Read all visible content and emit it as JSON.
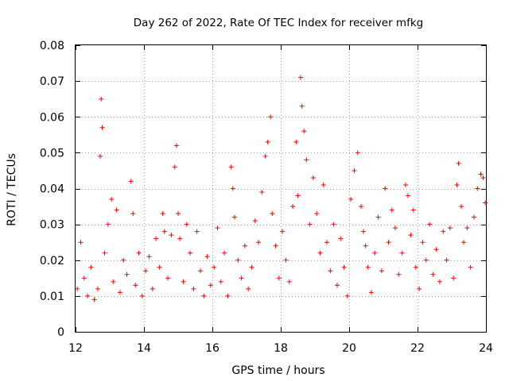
{
  "chart_data": {
    "type": "scatter",
    "title": "Day 262 of 2022, Rate Of TEC Index for receiver mfkg",
    "xlabel": "GPS time / hours",
    "ylabel": "ROTI / TECUs",
    "xlim": [
      12,
      24
    ],
    "ylim": [
      0,
      0.08
    ],
    "xticks": [
      12,
      14,
      16,
      18,
      20,
      22,
      24
    ],
    "xtick_labels": [
      "12",
      "14",
      "16",
      "18",
      "20",
      "22",
      "24"
    ],
    "yticks": [
      0,
      0.01,
      0.02,
      0.03,
      0.04,
      0.05,
      0.06,
      0.07,
      0.08
    ],
    "ytick_labels": [
      "0",
      "0.01",
      "0.02",
      "0.03",
      "0.04",
      "0.05",
      "0.06",
      "0.07",
      "0.08"
    ],
    "grid": true,
    "marker": "+",
    "color": "#ff0000",
    "series": [
      {
        "name": "ROTI",
        "x": [
          12.05,
          12.15,
          12.25,
          12.35,
          12.45,
          12.55,
          12.65,
          12.72,
          12.75,
          12.78,
          12.85,
          12.95,
          13.05,
          13.1,
          13.2,
          13.3,
          13.4,
          13.5,
          13.62,
          13.68,
          13.75,
          13.85,
          13.95,
          14.05,
          14.15,
          14.25,
          14.35,
          14.45,
          14.55,
          14.6,
          14.7,
          14.8,
          14.9,
          14.95,
          15.0,
          15.05,
          15.15,
          15.25,
          15.35,
          15.45,
          15.55,
          15.65,
          15.75,
          15.85,
          15.95,
          16.05,
          16.15,
          16.25,
          16.35,
          16.45,
          16.55,
          16.6,
          16.65,
          16.75,
          16.85,
          16.95,
          17.05,
          17.15,
          17.25,
          17.35,
          17.45,
          17.55,
          17.62,
          17.7,
          17.75,
          17.85,
          17.95,
          18.05,
          18.15,
          18.25,
          18.35,
          18.45,
          18.5,
          18.58,
          18.62,
          18.68,
          18.75,
          18.85,
          18.95,
          19.05,
          19.15,
          19.25,
          19.35,
          19.45,
          19.55,
          19.65,
          19.75,
          19.85,
          19.95,
          20.05,
          20.15,
          20.25,
          20.35,
          20.42,
          20.48,
          20.55,
          20.65,
          20.75,
          20.85,
          20.95,
          21.05,
          21.15,
          21.25,
          21.35,
          21.45,
          21.55,
          21.65,
          21.72,
          21.8,
          21.88,
          21.95,
          22.05,
          22.15,
          22.25,
          22.35,
          22.45,
          22.55,
          22.65,
          22.75,
          22.85,
          22.95,
          23.05,
          23.15,
          23.2,
          23.28,
          23.35,
          23.45,
          23.55,
          23.65,
          23.75,
          23.85,
          23.92,
          23.98
        ],
        "y": [
          0.012,
          0.025,
          0.015,
          0.01,
          0.018,
          0.009,
          0.012,
          0.049,
          0.065,
          0.057,
          0.022,
          0.03,
          0.037,
          0.014,
          0.034,
          0.011,
          0.02,
          0.016,
          0.042,
          0.033,
          0.013,
          0.022,
          0.01,
          0.017,
          0.021,
          0.012,
          0.026,
          0.018,
          0.033,
          0.028,
          0.015,
          0.027,
          0.046,
          0.052,
          0.033,
          0.026,
          0.014,
          0.03,
          0.022,
          0.012,
          0.028,
          0.017,
          0.01,
          0.021,
          0.013,
          0.018,
          0.029,
          0.014,
          0.022,
          0.01,
          0.046,
          0.04,
          0.032,
          0.02,
          0.015,
          0.024,
          0.012,
          0.018,
          0.031,
          0.025,
          0.039,
          0.049,
          0.053,
          0.06,
          0.033,
          0.024,
          0.015,
          0.028,
          0.02,
          0.014,
          0.035,
          0.053,
          0.038,
          0.071,
          0.063,
          0.056,
          0.048,
          0.03,
          0.043,
          0.033,
          0.022,
          0.041,
          0.025,
          0.017,
          0.03,
          0.013,
          0.026,
          0.018,
          0.01,
          0.037,
          0.045,
          0.05,
          0.035,
          0.028,
          0.024,
          0.018,
          0.011,
          0.022,
          0.032,
          0.017,
          0.04,
          0.025,
          0.034,
          0.029,
          0.016,
          0.022,
          0.041,
          0.038,
          0.027,
          0.034,
          0.018,
          0.012,
          0.025,
          0.02,
          0.03,
          0.016,
          0.023,
          0.014,
          0.028,
          0.02,
          0.029,
          0.015,
          0.041,
          0.047,
          0.035,
          0.025,
          0.029,
          0.018,
          0.032,
          0.04,
          0.044,
          0.043,
          0.036
        ]
      }
    ]
  }
}
